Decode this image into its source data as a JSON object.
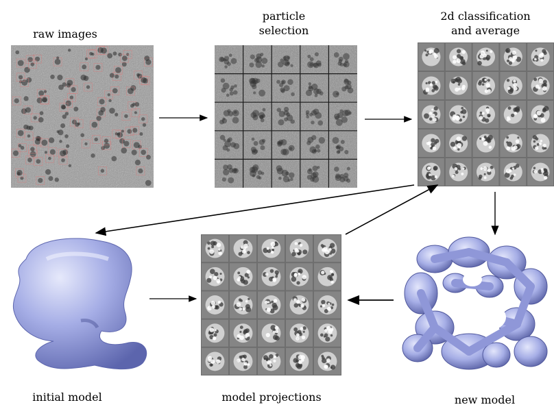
{
  "labels": {
    "raw_images": "raw images",
    "particle_selection_line1": "particle",
    "particle_selection_line2": "selection",
    "classification_line1": "2d classification",
    "classification_line2": "and average",
    "initial_model": "initial model",
    "model_projections": "model projections",
    "new_model": "new model"
  },
  "colors": {
    "model_fill": "#a6aee6",
    "model_shadow": "#6f78c0",
    "grid_line": "#1a1a1a",
    "micrograph": "#9a9a9a",
    "particle_box": "#d97a7a",
    "arrow": "#000000"
  },
  "icons": {
    "raw_images": "micrograph-image",
    "particle_selection": "particle-grid-image",
    "classification": "class-average-grid-image",
    "initial_model": "3d-density-model-image",
    "model_projections": "projection-grid-image",
    "new_model": "refined-3d-model-image"
  }
}
